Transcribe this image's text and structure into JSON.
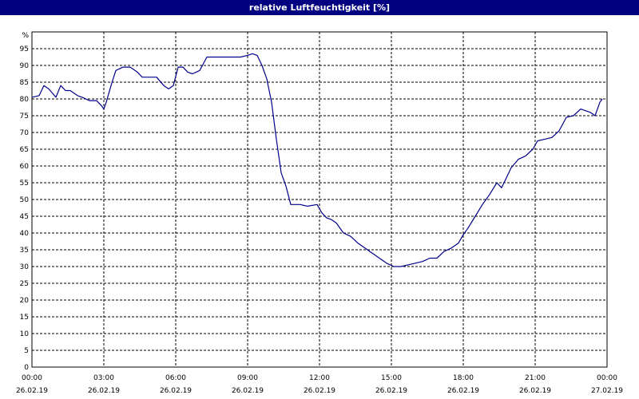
{
  "window": {
    "title": "relative Luftfeuchtigkeit [%]"
  },
  "chart_data": {
    "type": "line",
    "title": "relative Luftfeuchtigkeit [%]",
    "ylabel": "%",
    "xlabel": "",
    "xlim_hours": [
      0,
      24
    ],
    "ylim": [
      0,
      100
    ],
    "y_ticks": [
      0,
      5,
      10,
      15,
      20,
      25,
      30,
      35,
      40,
      45,
      50,
      55,
      60,
      65,
      70,
      75,
      80,
      85,
      90,
      95
    ],
    "y_tick_labels": [
      "0",
      "5",
      "10",
      "15",
      "20",
      "25",
      "30",
      "35",
      "40",
      "45",
      "50",
      "55",
      "60",
      "65",
      "70",
      "75",
      "80",
      "85",
      "90",
      "95"
    ],
    "x_tick_hours": [
      0,
      3,
      6,
      9,
      12,
      15,
      18,
      21,
      24
    ],
    "x_tick_time_labels": [
      "00:00",
      "03:00",
      "06:00",
      "09:00",
      "12:00",
      "15:00",
      "18:00",
      "21:00",
      "00:00"
    ],
    "x_tick_date_labels": [
      "26.02.19",
      "26.02.19",
      "26.02.19",
      "26.02.19",
      "26.02.19",
      "26.02.19",
      "26.02.19",
      "26.02.19",
      "27.02.19"
    ],
    "grid": true,
    "line_color": "#00008b",
    "series": [
      {
        "x_hours": [
          0.0,
          0.3,
          0.5,
          0.7,
          1.0,
          1.2,
          1.4,
          1.6,
          1.9,
          2.1,
          2.4,
          2.7,
          2.9,
          3.0,
          3.1,
          3.3,
          3.5,
          3.8,
          4.1,
          4.4,
          4.6,
          4.9,
          5.2,
          5.5,
          5.7,
          5.9,
          6.1,
          6.3,
          6.5,
          6.7,
          7.0,
          7.3,
          7.5,
          7.8,
          8.1,
          8.4,
          8.7,
          9.0,
          9.2,
          9.4,
          9.6,
          9.8,
          10.0,
          10.2,
          10.4,
          10.6,
          10.8,
          11.0,
          11.2,
          11.5,
          11.9,
          12.1,
          12.3,
          12.5,
          12.7,
          13.0,
          13.3,
          13.6,
          13.9,
          14.2,
          14.5,
          14.8,
          15.1,
          15.4,
          15.7,
          16.0,
          16.3,
          16.6,
          16.9,
          17.2,
          17.5,
          17.8,
          18.0,
          18.2,
          18.5,
          18.8,
          19.1,
          19.4,
          19.6,
          19.8,
          20.0,
          20.3,
          20.6,
          20.9,
          21.1,
          21.4,
          21.7,
          22.0,
          22.3,
          22.6,
          22.9,
          23.1,
          23.3,
          23.5,
          23.7,
          23.8
        ],
        "values": [
          80.5,
          81,
          84,
          83,
          80.5,
          84,
          82.5,
          82.5,
          81,
          80.5,
          79.5,
          79.5,
          78,
          77,
          79,
          84,
          88.5,
          89.5,
          89.5,
          88,
          86.5,
          86.5,
          86.5,
          84,
          83,
          84,
          89.5,
          89.5,
          88,
          87.5,
          88.5,
          92.5,
          92.5,
          92.5,
          92.5,
          92.5,
          92.5,
          93,
          93.5,
          93,
          90,
          86,
          79,
          68,
          58,
          54,
          48.5,
          48.5,
          48.5,
          48,
          48.5,
          46,
          44.5,
          44,
          43,
          40,
          39,
          37,
          35.5,
          34,
          32.5,
          31,
          30,
          30,
          30.5,
          31,
          31.5,
          32.5,
          32.5,
          34.5,
          35.5,
          37,
          39.5,
          41.5,
          45,
          48.5,
          51.5,
          55,
          53.5,
          56.5,
          59.5,
          62,
          63,
          65,
          67.5,
          68,
          68.5,
          70.5,
          74.5,
          75,
          77,
          76.5,
          76,
          75,
          79,
          80
        ]
      }
    ]
  }
}
